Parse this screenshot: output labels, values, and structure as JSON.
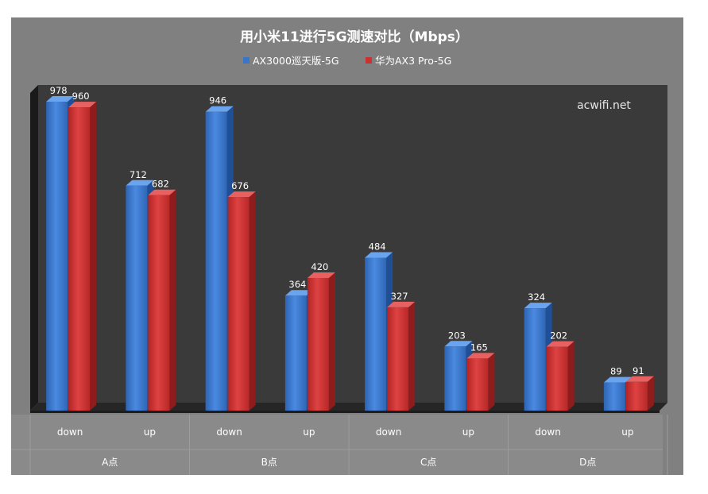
{
  "chart_data": {
    "type": "bar",
    "title": "用小米11进行5G测速对比（Mbps）",
    "watermark": "acwifi.net",
    "groups": [
      "A点",
      "B点",
      "C点",
      "D点"
    ],
    "categories": [
      "down",
      "up",
      "down",
      "up",
      "down",
      "up",
      "down",
      "up"
    ],
    "series": [
      {
        "name": "AX3000巡天版-5G",
        "color": "#3a76c8",
        "values": [
          978,
          712,
          946,
          364,
          484,
          203,
          324,
          89
        ]
      },
      {
        "name": "华为AX3 Pro-5G",
        "color": "#c93232",
        "values": [
          960,
          682,
          676,
          420,
          327,
          165,
          202,
          91
        ]
      }
    ],
    "ylim": [
      0,
      1000
    ],
    "grid": false,
    "legend_position": "top"
  },
  "colors": {
    "background": "#808080",
    "plot_back": "#3a3a3a",
    "plot_side": "#1a1a1a",
    "floor": "#262626",
    "title_text": "#ffffff",
    "label_text": "#ffffff"
  }
}
